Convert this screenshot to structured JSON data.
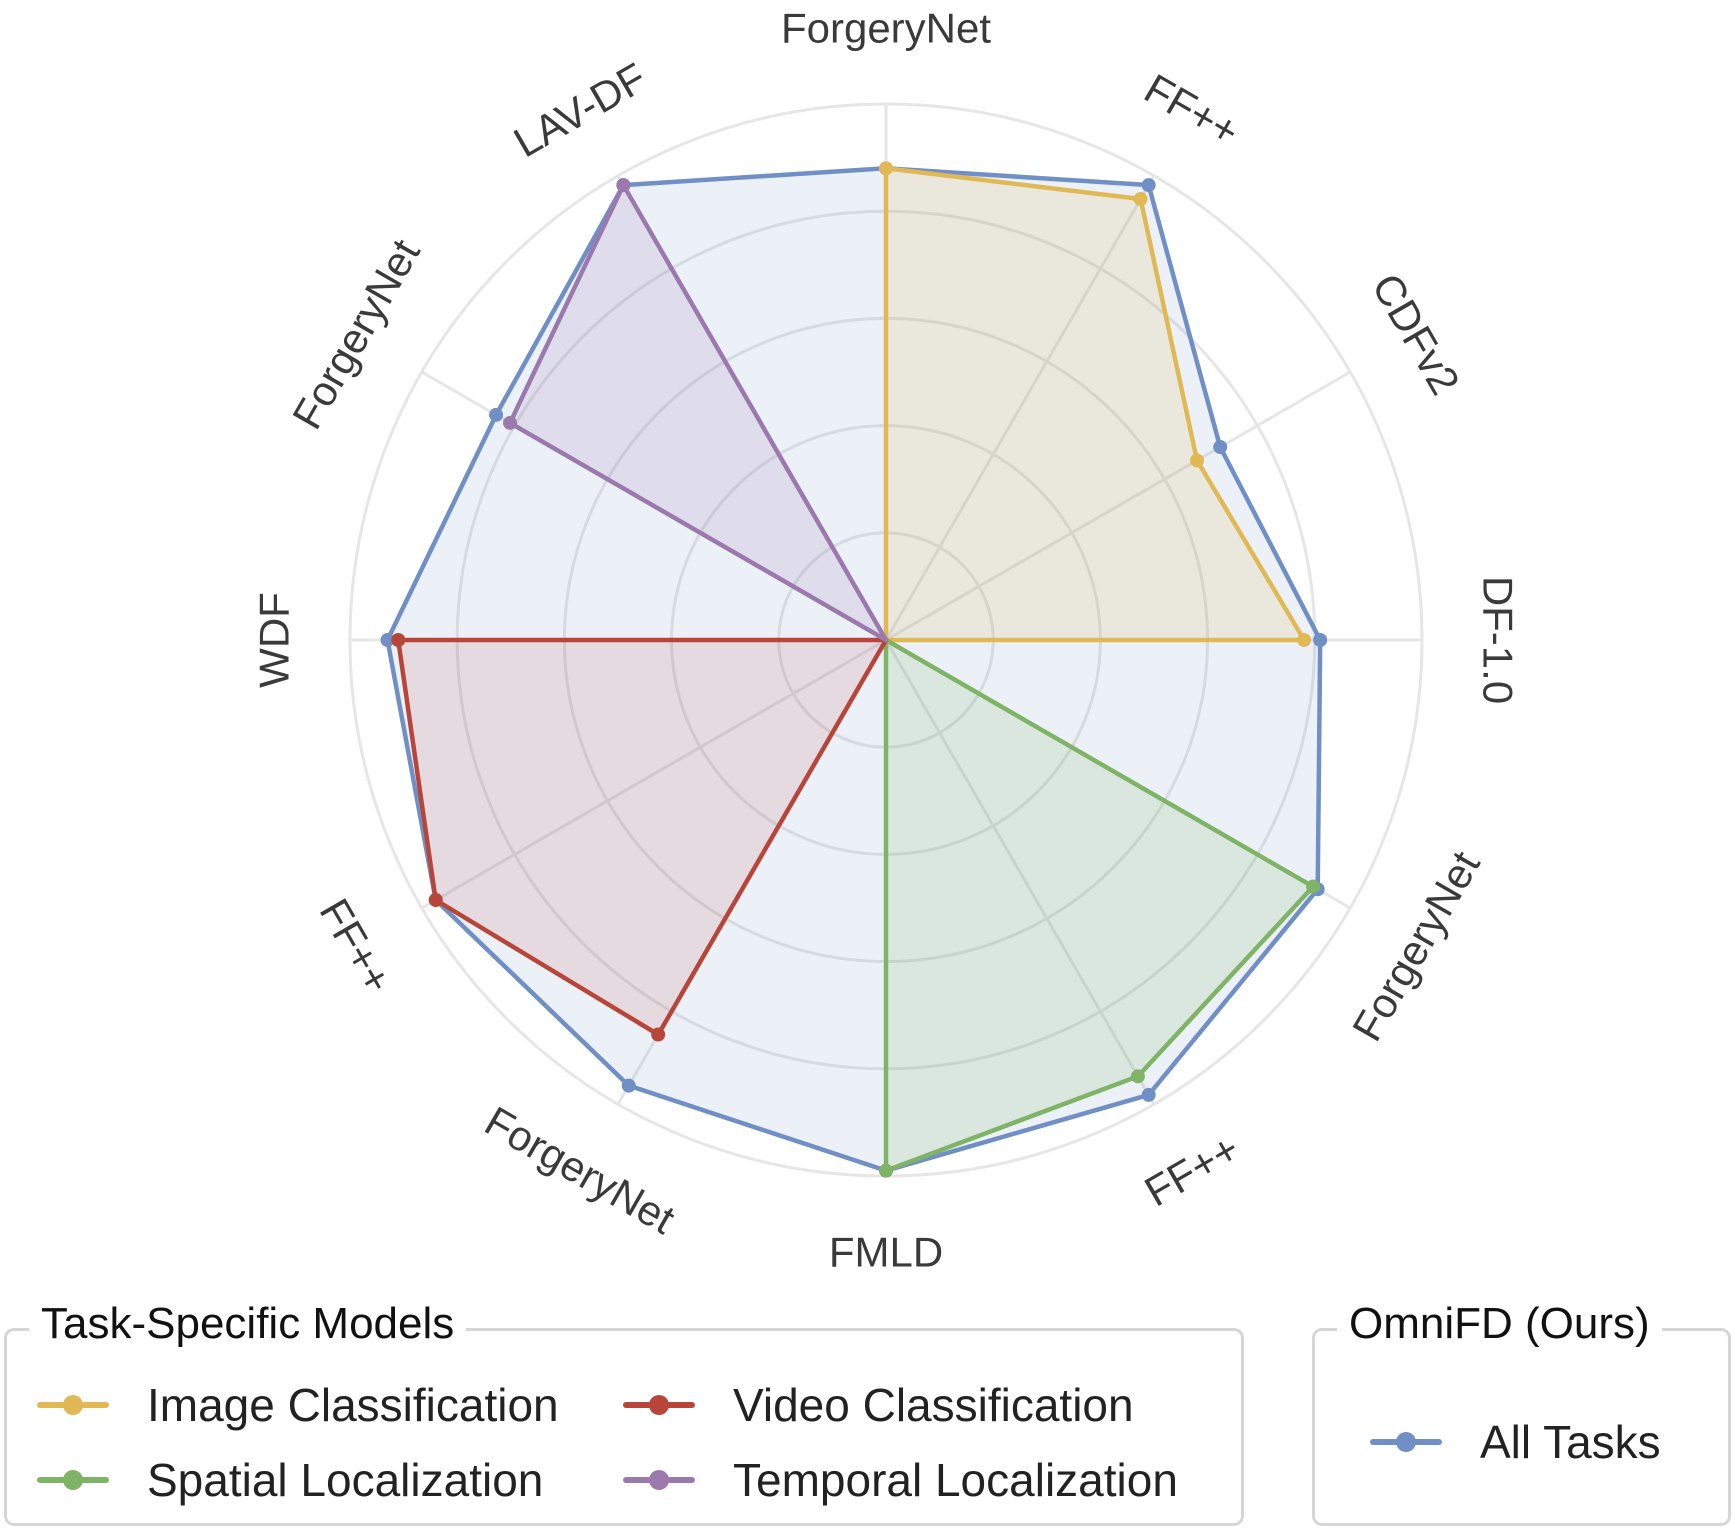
{
  "chart_data": {
    "type": "radar",
    "axes": [
      "ForgeryNet",
      "FF++",
      "CDFv2",
      "DF-1.0",
      "ForgeryNet",
      "FF++",
      "FMLD",
      "ForgeryNet",
      "FF++",
      "WDF",
      "ForgeryNet",
      "LAV-DF"
    ],
    "rlim": [
      0,
      1
    ],
    "grid": true,
    "series": [
      {
        "name": "All Tasks",
        "group": "omnifd",
        "color": "#6f8fc5",
        "fill": "rgba(111,143,197,0.13)",
        "values": [
          0.88,
          0.98,
          0.72,
          0.81,
          0.93,
          0.98,
          0.99,
          0.96,
          0.97,
          0.93,
          0.84,
          0.98
        ]
      },
      {
        "name": "Image Classification",
        "group": "task",
        "color": "#e0b954",
        "fill": "rgba(224,185,84,0.16)",
        "values": [
          0.88,
          0.95,
          0.67,
          0.78,
          0,
          0,
          0,
          0,
          0,
          0,
          0,
          0
        ]
      },
      {
        "name": "Spatial Localization",
        "group": "task",
        "color": "#7fb366",
        "fill": "rgba(127,179,102,0.16)",
        "values": [
          0,
          0,
          0,
          0,
          0.92,
          0.94,
          0.99,
          0,
          0,
          0,
          0,
          0
        ]
      },
      {
        "name": "Video Classification",
        "group": "task",
        "color": "#b8453a",
        "fill": "rgba(184,69,58,0.13)",
        "values": [
          0,
          0,
          0,
          0,
          0,
          0,
          0,
          0.85,
          0.97,
          0.91,
          0,
          0
        ]
      },
      {
        "name": "Temporal Localization",
        "group": "task",
        "color": "#9b79ad",
        "fill": "rgba(155,121,173,0.16)",
        "values": [
          0,
          0,
          0,
          0,
          0,
          0,
          0,
          0,
          0,
          0,
          0.81,
          0.98
        ]
      }
    ]
  },
  "legend": {
    "task_title": "Task-Specific Models",
    "ours_title": "OmniFD (Ours)",
    "items": {
      "image_classification": "Image Classification",
      "video_classification": "Video Classification",
      "spatial_localization": "Spatial Localization",
      "temporal_localization": "Temporal Localization",
      "all_tasks": "All Tasks"
    },
    "colors": {
      "image_classification": "#e0b954",
      "video_classification": "#b8453a",
      "spatial_localization": "#7fb366",
      "temporal_localization": "#9b79ad",
      "all_tasks": "#6f8fc5"
    }
  }
}
